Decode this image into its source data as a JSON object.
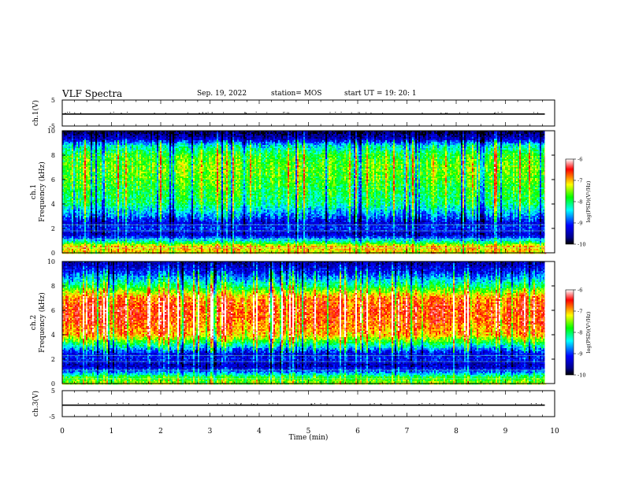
{
  "header": {
    "title": "VLF Spectra",
    "date": "Sep. 19, 2022",
    "station": "station= MOS",
    "start_ut": "start  UT =    19: 20: 1"
  },
  "chart_data": [
    {
      "type": "line",
      "panel": "ch1-voltage",
      "ylabel": "ch.1(V)",
      "ylim": [
        -5,
        5
      ],
      "yticks": [
        "5",
        "-5"
      ],
      "xlim": [
        0,
        10
      ],
      "series": [
        {
          "x": [
            0,
            9.8
          ],
          "values": [
            -0.4,
            -0.4
          ]
        }
      ]
    },
    {
      "type": "heatmap",
      "panel": "ch1-spectrogram",
      "ylabel": "ch.1\nFrequency (kHz)",
      "ylim": [
        0,
        10
      ],
      "yticks": [
        "0",
        "2",
        "4",
        "6",
        "8",
        "10"
      ],
      "xlim": [
        0,
        10
      ],
      "data_extent_x": [
        0,
        9.8
      ],
      "colorbar": {
        "label": "log(PSD)(V²/Hz)",
        "range": [
          -10,
          -6
        ],
        "ticks": [
          "-6",
          "-7",
          "-8",
          "-9",
          "-10"
        ],
        "colors": [
          "#000000",
          "#00008b",
          "#0000ff",
          "#00ffff",
          "#00ff00",
          "#ffff00",
          "#ff0000",
          "#ffffff"
        ]
      },
      "frequency_profile": [
        {
          "f": 0.0,
          "level": -7.2
        },
        {
          "f": 0.5,
          "level": -7.0
        },
        {
          "f": 1.0,
          "level": -8.4
        },
        {
          "f": 1.5,
          "level": -9.4
        },
        {
          "f": 2.0,
          "level": -9.0
        },
        {
          "f": 2.5,
          "level": -9.3
        },
        {
          "f": 3.0,
          "level": -8.8
        },
        {
          "f": 4.0,
          "level": -8.1
        },
        {
          "f": 5.0,
          "level": -7.9
        },
        {
          "f": 6.0,
          "level": -7.7
        },
        {
          "f": 7.0,
          "level": -7.6
        },
        {
          "f": 8.0,
          "level": -7.8
        },
        {
          "f": 8.8,
          "level": -8.4
        },
        {
          "f": 9.3,
          "level": -9.4
        },
        {
          "f": 10.0,
          "level": -9.9
        }
      ]
    },
    {
      "type": "heatmap",
      "panel": "ch2-spectrogram",
      "ylabel": "ch.2\nFrequency (kHz)",
      "ylim": [
        0,
        10
      ],
      "yticks": [
        "0",
        "2",
        "4",
        "6",
        "8",
        "10"
      ],
      "xlim": [
        0,
        10
      ],
      "data_extent_x": [
        0,
        9.8
      ],
      "colorbar": {
        "label": "log(PSD)(V²/Hz)",
        "range": [
          -10,
          -6
        ],
        "ticks": [
          "-6",
          "-7",
          "-8",
          "-9",
          "-10"
        ],
        "colors": [
          "#000000",
          "#00008b",
          "#0000ff",
          "#00ffff",
          "#00ff00",
          "#ffff00",
          "#ff0000",
          "#ffffff"
        ]
      },
      "frequency_profile": [
        {
          "f": 0.0,
          "level": -7.5
        },
        {
          "f": 0.5,
          "level": -7.8
        },
        {
          "f": 1.0,
          "level": -8.9
        },
        {
          "f": 1.5,
          "level": -9.5
        },
        {
          "f": 2.0,
          "level": -9.1
        },
        {
          "f": 2.5,
          "level": -9.2
        },
        {
          "f": 3.0,
          "level": -8.4
        },
        {
          "f": 3.5,
          "level": -7.7
        },
        {
          "f": 4.0,
          "level": -7.0
        },
        {
          "f": 5.0,
          "level": -6.7
        },
        {
          "f": 6.0,
          "level": -6.6
        },
        {
          "f": 7.0,
          "level": -6.8
        },
        {
          "f": 7.5,
          "level": -7.4
        },
        {
          "f": 8.0,
          "level": -8.0
        },
        {
          "f": 8.5,
          "level": -8.5
        },
        {
          "f": 9.0,
          "level": -9.0
        },
        {
          "f": 10.0,
          "level": -9.6
        }
      ]
    },
    {
      "type": "line",
      "panel": "ch3-voltage",
      "ylabel": "ch.3(V)",
      "ylim": [
        -5,
        5
      ],
      "yticks": [
        "5",
        "-5"
      ],
      "xlim": [
        0,
        10
      ],
      "xlabel": "Time  (min)",
      "xticks": [
        "0",
        "1",
        "2",
        "3",
        "4",
        "5",
        "6",
        "7",
        "8",
        "9",
        "10"
      ],
      "series": [
        {
          "x": [
            0,
            9.8
          ],
          "values": [
            -0.6,
            -0.6
          ]
        }
      ]
    }
  ]
}
